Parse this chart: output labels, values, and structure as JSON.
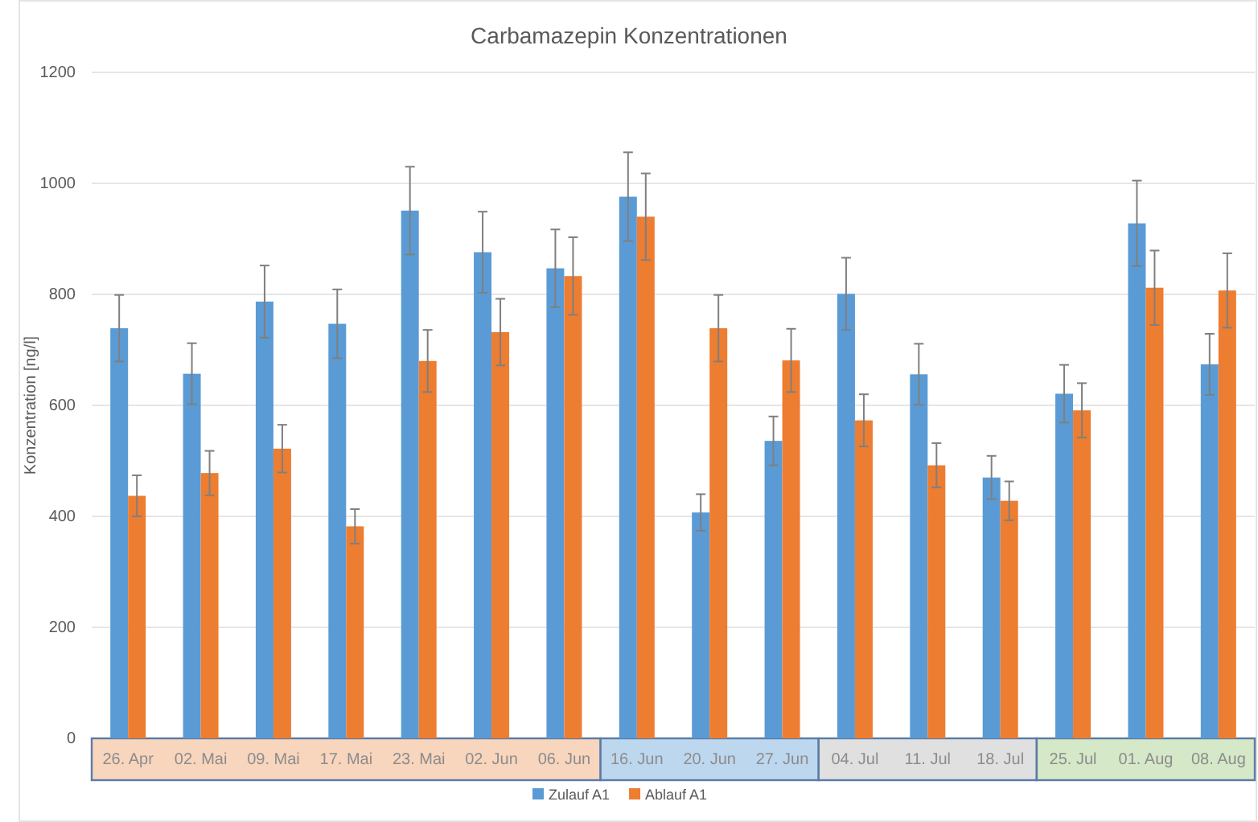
{
  "chart_data": {
    "type": "bar",
    "title": "Carbamazepin  Konzentrationen",
    "ylabel": "Konzentration [ng/l]",
    "categories": [
      "26. Apr",
      "02. Mai",
      "09. Mai",
      "17. Mai",
      "23. Mai",
      "02. Jun",
      "06. Jun",
      "16. Jun",
      "20. Jun",
      "27. Jun",
      "04. Jul",
      "11. Jul",
      "18. Jul",
      "25. Jul",
      "01. Aug",
      "08. Aug"
    ],
    "series": [
      {
        "name": "Zulauf A1",
        "color": "#5b9bd5",
        "values": [
          739,
          657,
          787,
          747,
          951,
          876,
          847,
          976,
          407,
          536,
          801,
          656,
          470,
          621,
          928,
          674
        ],
        "errors": [
          60,
          55,
          65,
          62,
          79,
          73,
          70,
          80,
          33,
          44,
          65,
          55,
          39,
          52,
          77,
          55
        ]
      },
      {
        "name": "Ablauf A1",
        "color": "#ed7d31",
        "values": [
          437,
          478,
          522,
          382,
          680,
          732,
          833,
          940,
          739,
          681,
          573,
          492,
          428,
          591,
          812,
          807
        ],
        "errors": [
          37,
          40,
          43,
          31,
          56,
          60,
          70,
          78,
          60,
          57,
          47,
          40,
          35,
          49,
          67,
          67
        ]
      }
    ],
    "ylim": [
      0,
      1200
    ],
    "yticks": [
      0,
      200,
      400,
      600,
      800,
      1000,
      1200
    ],
    "grid": "y",
    "legend": "bottom"
  }
}
